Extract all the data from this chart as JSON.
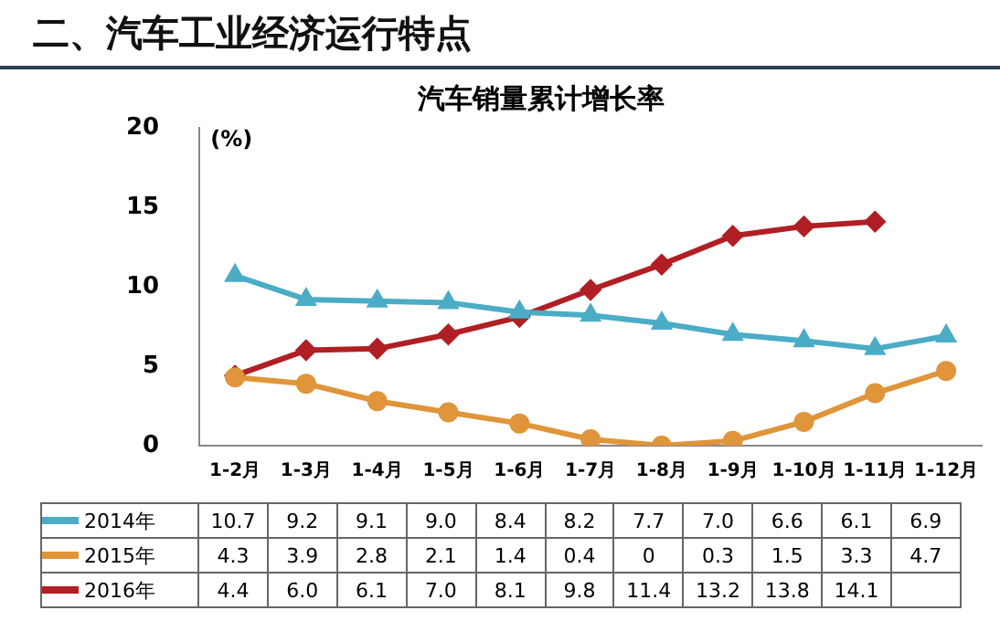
{
  "chart_data": {
    "type": "line",
    "title": "汽车销量累计增长率",
    "ylabel": "(%)",
    "annotations": [
      "二、汽车工业经济运行特点"
    ],
    "categories": [
      "1-2月",
      "1-3月",
      "1-4月",
      "1-5月",
      "1-6月",
      "1-7月",
      "1-8月",
      "1-9月",
      "1-10月",
      "1-11月",
      "1-12月"
    ],
    "series": [
      {
        "name": "2014年",
        "color": "#4bacc6",
        "marker": "triangle",
        "values": [
          10.7,
          9.2,
          9.1,
          9.0,
          8.4,
          8.2,
          7.7,
          7.0,
          6.6,
          6.1,
          6.9
        ],
        "value_labels": [
          "10.7",
          "9.2",
          "9.1",
          "9.0",
          "8.4",
          "8.2",
          "7.7",
          "7.0",
          "6.6",
          "6.1",
          "6.9"
        ]
      },
      {
        "name": "2015年",
        "color": "#e0953a",
        "marker": "circle",
        "values": [
          4.3,
          3.9,
          2.8,
          2.1,
          1.4,
          0.4,
          0,
          0.3,
          1.5,
          3.3,
          4.7
        ],
        "value_labels": [
          "4.3",
          "3.9",
          "2.8",
          "2.1",
          "1.4",
          "0.4",
          "0",
          "0.3",
          "1.5",
          "3.3",
          "4.7"
        ]
      },
      {
        "name": "2016年",
        "color": "#b01f24",
        "marker": "diamond",
        "values": [
          4.4,
          6.0,
          6.1,
          7.0,
          8.1,
          9.8,
          11.4,
          13.2,
          13.8,
          14.1,
          null
        ],
        "value_labels": [
          "4.4",
          "6.0",
          "6.1",
          "7.0",
          "8.1",
          "9.8",
          "11.4",
          "13.2",
          "13.8",
          "14.1",
          null
        ]
      }
    ],
    "ylim": [
      0,
      20
    ],
    "yticks": [
      0,
      5,
      10,
      15,
      20
    ],
    "grid": false,
    "legend": "bottom"
  }
}
